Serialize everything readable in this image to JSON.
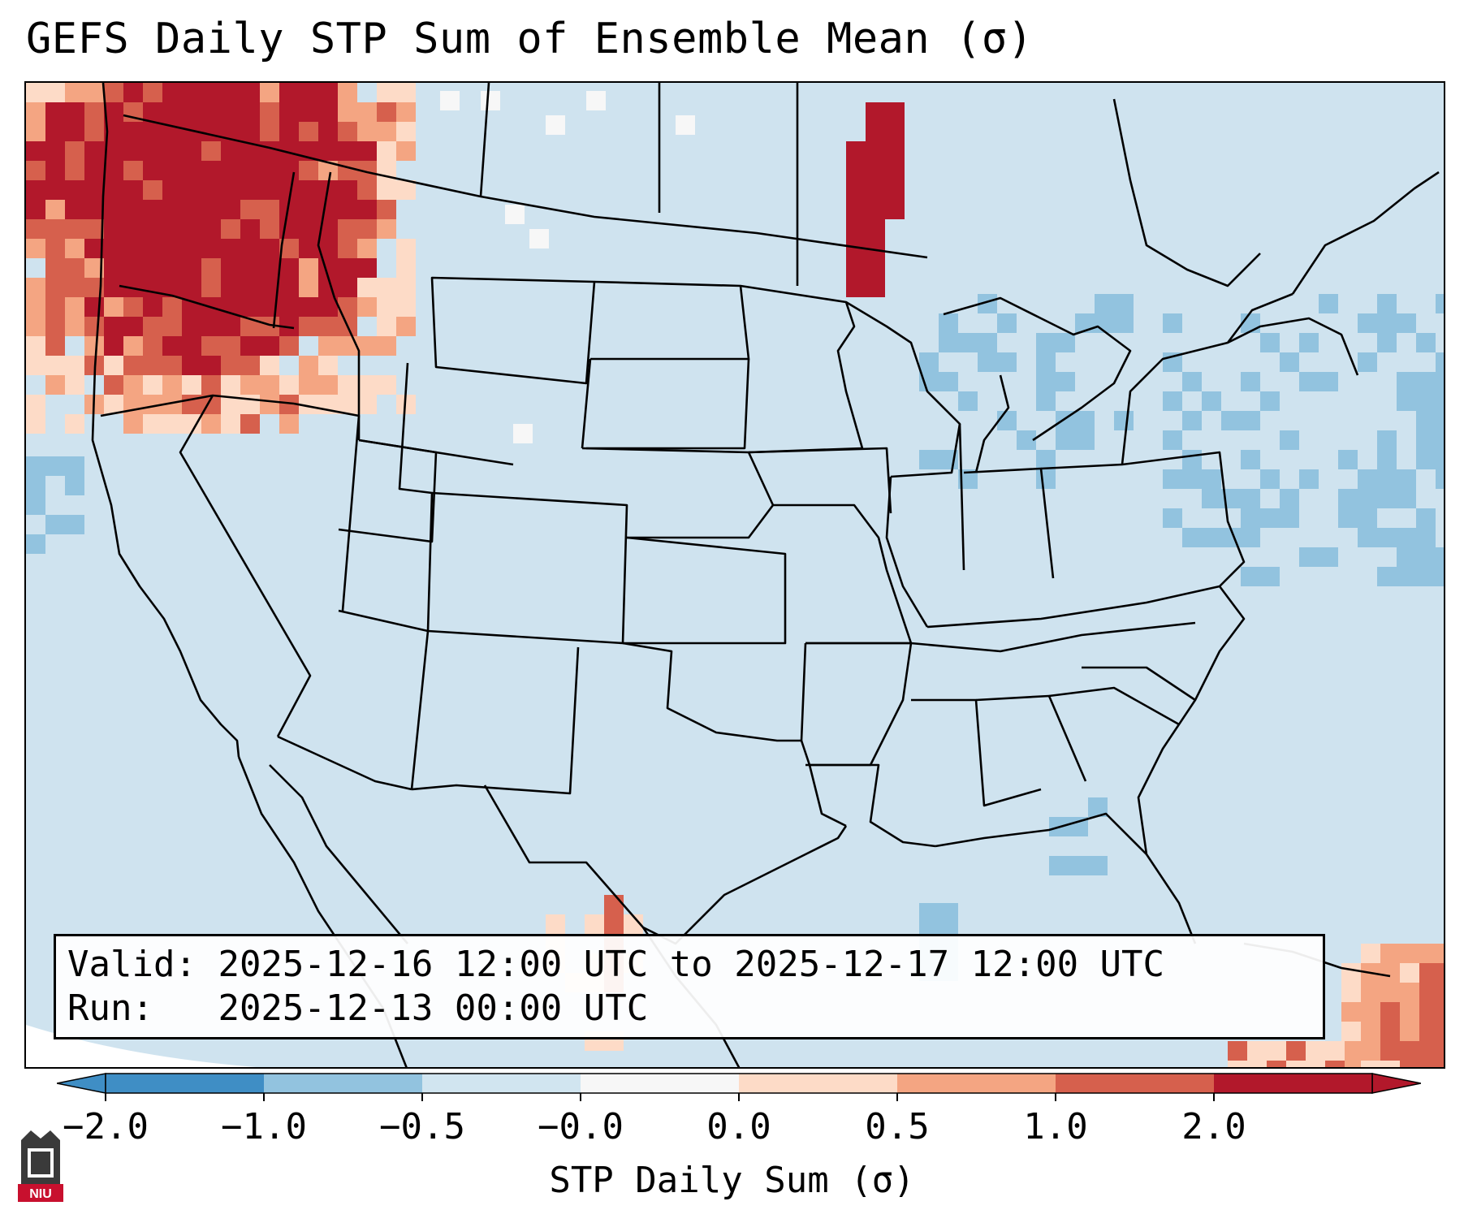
{
  "title": "GEFS Daily STP Sum of Ensemble Mean (σ)",
  "info": {
    "valid_label": "Valid:",
    "valid_value": "2025-12-16 12:00 UTC to 2025-12-17 12:00 UTC",
    "run_label": "Run:",
    "run_value": "2025-12-13 00:00 UTC"
  },
  "colorbar": {
    "label": "STP Daily Sum (σ)",
    "ticks": [
      "−2.0",
      "−1.0",
      "−0.5",
      "−0.0",
      "0.0",
      "0.5",
      "1.0",
      "2.0"
    ],
    "bin_colors": [
      "#3f8ec5",
      "#92c3df",
      "#d1e5f0",
      "#f7f7f7",
      "#fddbc7",
      "#f4a582",
      "#d6604d",
      "#b2182b"
    ],
    "extend": "both"
  },
  "colors": {
    "map_background": "#cfe3ef",
    "negative_mild": "#92c3df",
    "neutral": "#f7f7f7",
    "positive_light": "#fddbc7",
    "positive_mid": "#f4a582",
    "positive_high": "#d6604d",
    "positive_max": "#b2182b"
  },
  "logo": {
    "text": "NIU"
  }
}
